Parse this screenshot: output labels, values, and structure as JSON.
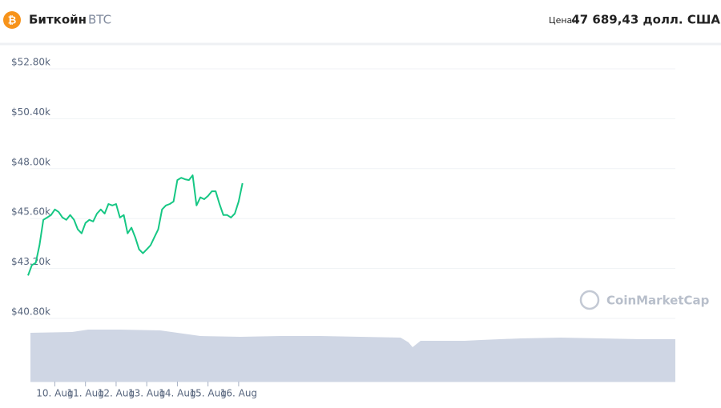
{
  "header": {
    "coin_name": "Биткойн",
    "symbol": "BTC",
    "price_label": "Цена:",
    "price": "47 689,43 долл. США"
  },
  "watermark": "CoinMarketCap",
  "chart_data": {
    "type": "line",
    "color": "#16c784",
    "grid": true,
    "categories": [
      null,
      null,
      null,
      null,
      null,
      null,
      null,
      "10. Aug",
      null,
      null,
      null,
      null,
      null,
      null,
      null,
      "11. Aug",
      null,
      null,
      null,
      null,
      null,
      null,
      null,
      "12. Aug",
      null,
      null,
      null,
      null,
      null,
      null,
      null,
      "13. Aug",
      null,
      null,
      null,
      null,
      null,
      null,
      null,
      "14. Aug",
      null,
      null,
      null,
      null,
      null,
      null,
      null,
      "15. Aug",
      null,
      null,
      null,
      null,
      null,
      null,
      null,
      "16. Aug",
      null
    ],
    "values": [
      42860,
      43360,
      43470,
      44320,
      45540,
      45650,
      45770,
      46040,
      45920,
      45650,
      45540,
      45770,
      45540,
      45080,
      44890,
      45390,
      45540,
      45460,
      45840,
      46040,
      45840,
      46300,
      46230,
      46300,
      45650,
      45770,
      44890,
      45160,
      44700,
      44120,
      43930,
      44120,
      44320,
      44700,
      45080,
      46040,
      46230,
      46300,
      46420,
      47450,
      47560,
      47490,
      47450,
      47680,
      46230,
      46620,
      46530,
      46690,
      46910,
      46910,
      46300,
      45770,
      45770,
      45650,
      45840,
      46420,
      47300
    ],
    "ylim": [
      40800,
      52800
    ],
    "yticks": [
      {
        "value": 40800,
        "label": "$40.80k"
      },
      {
        "value": 43200,
        "label": "$43.20k"
      },
      {
        "value": 45600,
        "label": "$45.60k"
      },
      {
        "value": 48000,
        "label": "$48.00k"
      },
      {
        "value": 50400,
        "label": "$50.40k"
      },
      {
        "value": 52800,
        "label": "$52.80k"
      }
    ]
  }
}
